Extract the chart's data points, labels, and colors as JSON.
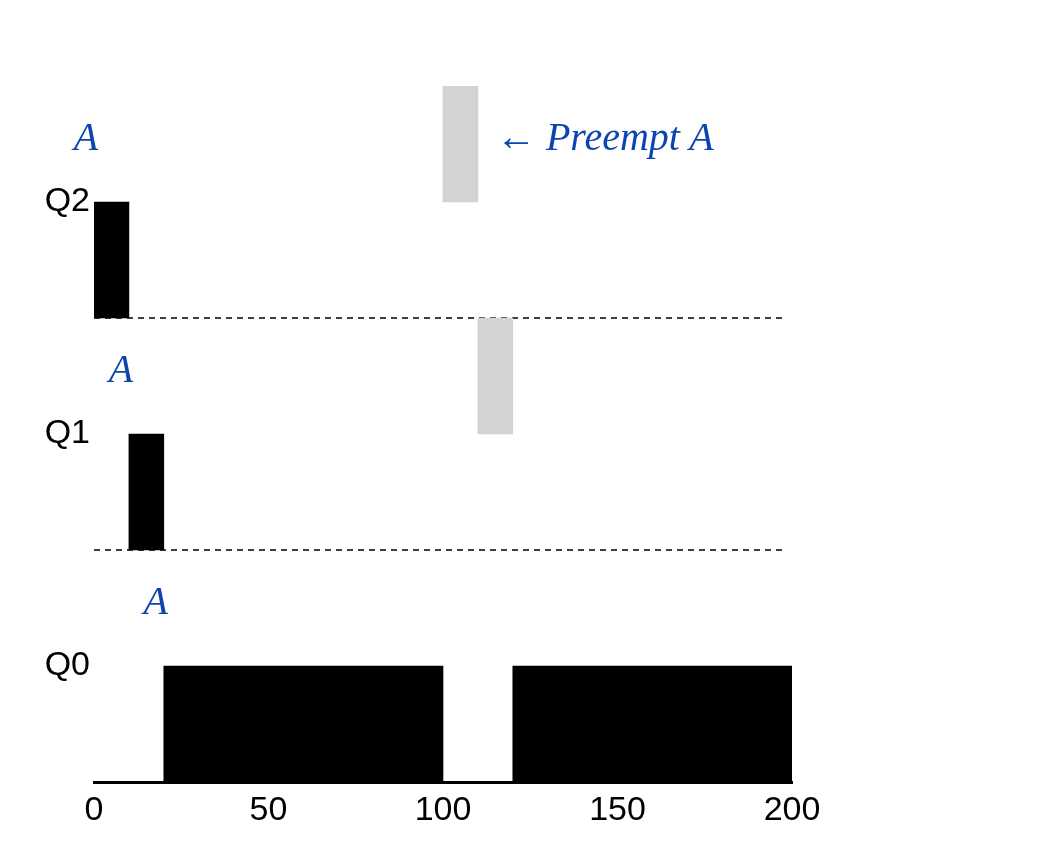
{
  "chart_data": {
    "type": "bar",
    "orientation": "horizontal",
    "categories": [
      "Q2",
      "Q1",
      "Q0"
    ],
    "series": [
      {
        "color": "#d3d3d3",
        "base": [
          100,
          110,
          null
        ],
        "values": [
          10,
          10,
          null
        ]
      },
      {
        "color": "#000000",
        "base": [
          0,
          10,
          20
        ],
        "values": [
          10,
          10,
          80
        ]
      },
      {
        "color": "#000000",
        "base": [
          null,
          null,
          120
        ],
        "values": [
          null,
          null,
          80
        ]
      }
    ],
    "xlim": [
      0,
      200
    ],
    "xticks": [
      0,
      50,
      100,
      150,
      200
    ],
    "grid": "y",
    "legend": false,
    "annotations": [
      {
        "text": "A",
        "x": 0,
        "y": "Q2"
      },
      {
        "text": "A",
        "x": 10,
        "y": "Q1"
      },
      {
        "text": "A",
        "x": 20,
        "y": "Q0"
      },
      {
        "text": "← Preempt A",
        "x": 110,
        "y": "Q2"
      }
    ]
  }
}
